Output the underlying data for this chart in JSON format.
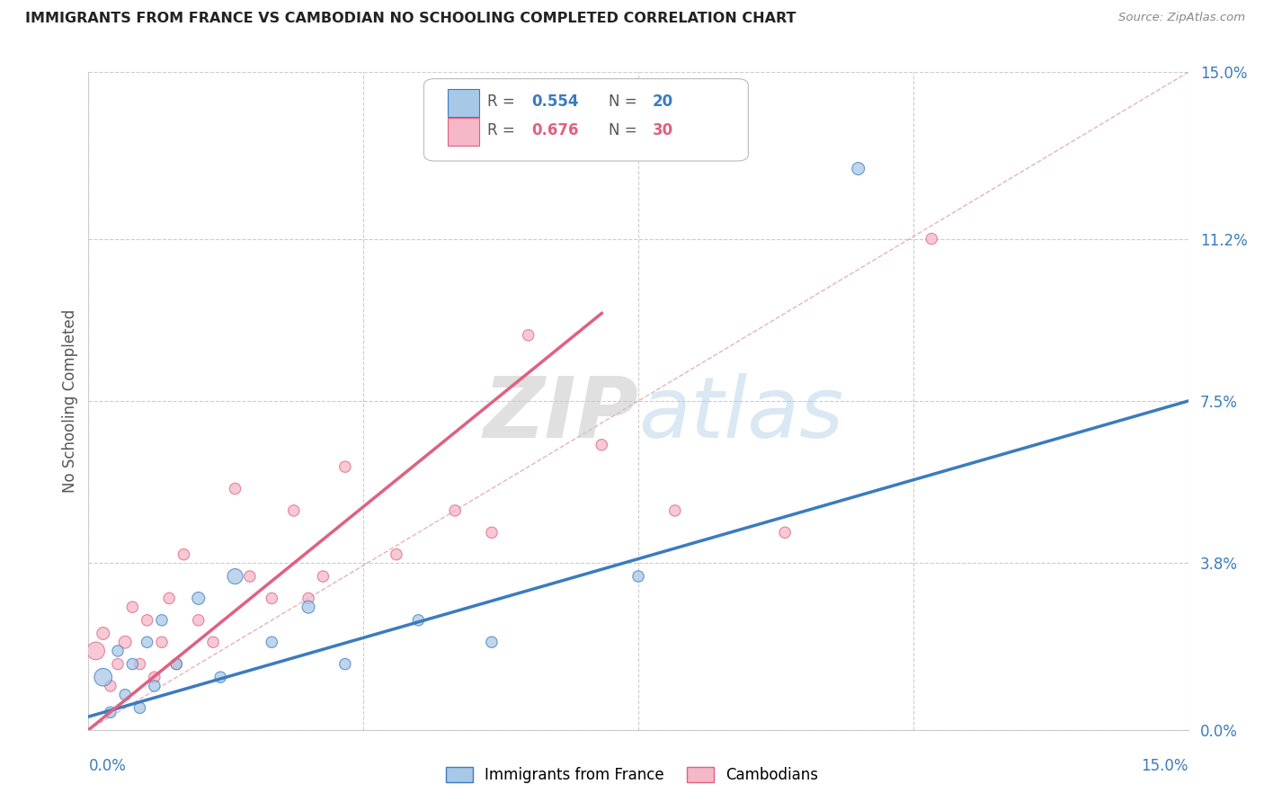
{
  "title": "IMMIGRANTS FROM FRANCE VS CAMBODIAN NO SCHOOLING COMPLETED CORRELATION CHART",
  "source": "Source: ZipAtlas.com",
  "ylabel": "No Schooling Completed",
  "ytick_values": [
    0.0,
    3.8,
    7.5,
    11.2,
    15.0
  ],
  "xlim": [
    0.0,
    15.0
  ],
  "ylim": [
    0.0,
    15.0
  ],
  "color_blue": "#a8c8e8",
  "color_pink": "#f4b8c8",
  "color_blue_line": "#3b7bbf",
  "color_pink_line": "#e06080",
  "color_diag_line": "#e0a0b0",
  "watermark_zip": "ZIP",
  "watermark_atlas": "atlas",
  "france_x": [
    0.2,
    0.3,
    0.4,
    0.5,
    0.6,
    0.7,
    0.8,
    0.9,
    1.0,
    1.2,
    1.5,
    1.8,
    2.0,
    2.5,
    3.0,
    3.5,
    4.5,
    5.5,
    7.5,
    10.5
  ],
  "france_y": [
    1.2,
    0.4,
    1.8,
    0.8,
    1.5,
    0.5,
    2.0,
    1.0,
    2.5,
    1.5,
    3.0,
    1.2,
    3.5,
    2.0,
    2.8,
    1.5,
    2.5,
    2.0,
    3.5,
    12.8
  ],
  "france_size": [
    200,
    80,
    80,
    80,
    80,
    80,
    80,
    80,
    80,
    80,
    100,
    80,
    150,
    80,
    100,
    80,
    80,
    80,
    80,
    100
  ],
  "cambodian_x": [
    0.1,
    0.2,
    0.3,
    0.4,
    0.5,
    0.6,
    0.7,
    0.8,
    0.9,
    1.0,
    1.1,
    1.2,
    1.3,
    1.5,
    1.7,
    2.0,
    2.2,
    2.5,
    2.8,
    3.0,
    3.2,
    3.5,
    4.2,
    5.0,
    5.5,
    6.0,
    7.0,
    8.0,
    9.5,
    11.5
  ],
  "cambodian_y": [
    1.8,
    2.2,
    1.0,
    1.5,
    2.0,
    2.8,
    1.5,
    2.5,
    1.2,
    2.0,
    3.0,
    1.5,
    4.0,
    2.5,
    2.0,
    5.5,
    3.5,
    3.0,
    5.0,
    3.0,
    3.5,
    6.0,
    4.0,
    5.0,
    4.5,
    9.0,
    6.5,
    5.0,
    4.5,
    11.2
  ],
  "cambodian_size": [
    200,
    100,
    80,
    80,
    100,
    80,
    80,
    80,
    80,
    80,
    80,
    80,
    80,
    80,
    80,
    80,
    80,
    80,
    80,
    80,
    80,
    80,
    80,
    80,
    80,
    80,
    80,
    80,
    80,
    80
  ],
  "france_line_x0": 0.0,
  "france_line_y0": 0.3,
  "france_line_x1": 15.0,
  "france_line_y1": 7.5,
  "cambodian_line_x0": 0.0,
  "cambodian_line_y0": 0.0,
  "cambodian_line_x1": 7.0,
  "cambodian_line_y1": 9.5
}
